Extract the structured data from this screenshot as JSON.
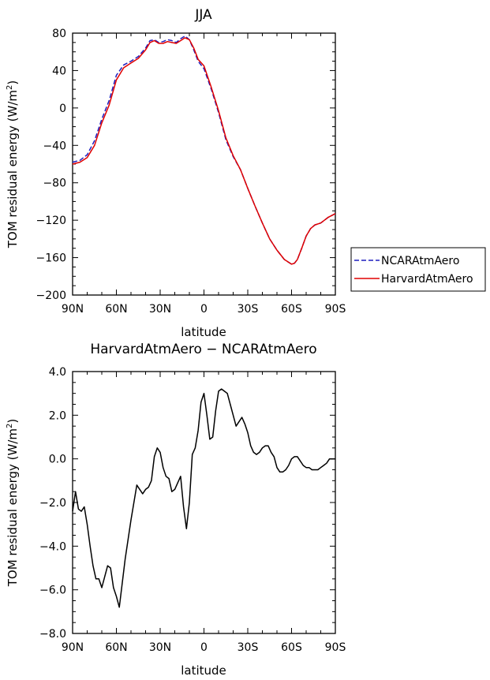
{
  "chart_data": [
    {
      "type": "line",
      "title": "JJA",
      "xlabel": "latitude",
      "ylabel": "TOM residual energy (W/m",
      "ylabel_sup": "2",
      "ylabel_close": ")",
      "xlim": [
        90,
        -90
      ],
      "ylim": [
        -200,
        80
      ],
      "xticks": [
        90,
        60,
        30,
        0,
        -30,
        -60,
        -90
      ],
      "xticklabels": [
        "90N",
        "60N",
        "30N",
        "0",
        "30S",
        "60S",
        "90S"
      ],
      "yticks": [
        80,
        40,
        0,
        -40,
        -80,
        -120,
        -160,
        -200
      ],
      "yticklabels": [
        "80",
        "40",
        "0",
        "−40",
        "−80",
        "−120",
        "−160",
        "−200"
      ],
      "legend_placement": "outside-right",
      "series": [
        {
          "name": "NCARAtmAero",
          "color": "#1f1fbf",
          "dash": "dashed",
          "x": [
            90,
            85,
            80,
            75,
            70,
            65,
            60,
            55,
            50,
            45,
            40,
            37,
            34,
            31,
            28,
            25,
            22,
            19,
            16,
            13,
            10,
            7,
            4,
            0,
            -5,
            -10,
            -15,
            -20,
            -25,
            -30,
            -35,
            -40,
            -45,
            -50,
            -55,
            -60,
            -62,
            -64,
            -67,
            -70,
            -73,
            -76,
            -80,
            -85,
            -90
          ],
          "y": [
            -58,
            -56,
            -50,
            -35,
            -12,
            8,
            35,
            46,
            50,
            55,
            64,
            72,
            73,
            70,
            71,
            73,
            72,
            70,
            74,
            77,
            73,
            62,
            50,
            42,
            20,
            -5,
            -34,
            -52,
            -66,
            -86,
            -105,
            -123,
            -140,
            -152,
            -162,
            -167,
            -166,
            -162,
            -150,
            -137,
            -129,
            -125,
            -123,
            -117,
            -113
          ]
        },
        {
          "name": "HarvardAtmAero",
          "color": "#e00000",
          "dash": "solid",
          "x": [
            90,
            85,
            80,
            75,
            70,
            65,
            60,
            55,
            50,
            45,
            40,
            37,
            34,
            31,
            28,
            25,
            22,
            19,
            16,
            13,
            10,
            7,
            4,
            0,
            -5,
            -10,
            -15,
            -20,
            -25,
            -30,
            -35,
            -40,
            -45,
            -50,
            -55,
            -60,
            -62,
            -64,
            -67,
            -70,
            -73,
            -76,
            -80,
            -85,
            -90
          ],
          "y": [
            -60,
            -58,
            -53,
            -40,
            -16,
            3,
            30,
            43,
            48,
            53,
            62,
            70,
            72,
            69,
            69,
            71,
            70,
            69,
            72,
            75,
            73,
            64,
            52,
            45,
            22,
            -3,
            -32,
            -51,
            -66,
            -86,
            -105,
            -123,
            -140,
            -152,
            -162,
            -167,
            -166,
            -162,
            -150,
            -137,
            -129,
            -125,
            -123,
            -117,
            -113
          ]
        }
      ]
    },
    {
      "type": "line",
      "title": "HarvardAtmAero − NCARAtmAero",
      "xlabel": "latitude",
      "ylabel": "TOM residual energy (W/m",
      "ylabel_sup": "2",
      "ylabel_close": ")",
      "xlim": [
        90,
        -90
      ],
      "ylim": [
        -8,
        4
      ],
      "xticks": [
        90,
        60,
        30,
        0,
        -30,
        -60,
        -90
      ],
      "xticklabels": [
        "90N",
        "60N",
        "30N",
        "0",
        "30S",
        "60S",
        "90S"
      ],
      "yticks": [
        4,
        2,
        0,
        -2,
        -4,
        -6,
        -8
      ],
      "yticklabels": [
        "4.0",
        "2.0",
        "0.0",
        "−2.0",
        "−4.0",
        "−6.0",
        "−8.0"
      ],
      "series": [
        {
          "color": "#000000",
          "dash": "solid",
          "x": [
            90,
            88,
            86,
            84,
            82,
            80,
            78,
            76,
            74,
            72,
            70,
            68,
            66,
            64,
            62,
            60,
            58,
            56,
            54,
            52,
            50,
            48,
            46,
            44,
            42,
            40,
            38,
            36,
            34,
            32,
            30,
            28,
            26,
            24,
            22,
            20,
            18,
            16,
            14,
            12,
            10,
            8,
            6,
            4,
            2,
            0,
            -2,
            -4,
            -6,
            -8,
            -10,
            -12,
            -14,
            -16,
            -18,
            -20,
            -22,
            -24,
            -26,
            -28,
            -30,
            -32,
            -34,
            -36,
            -38,
            -40,
            -42,
            -44,
            -46,
            -48,
            -50,
            -52,
            -54,
            -56,
            -58,
            -60,
            -62,
            -64,
            -66,
            -68,
            -70,
            -72,
            -74,
            -76,
            -78,
            -80,
            -82,
            -84,
            -86,
            -88,
            -90
          ],
          "y": [
            -2.4,
            -1.5,
            -2.3,
            -2.4,
            -2.2,
            -3.0,
            -4.0,
            -4.9,
            -5.5,
            -5.5,
            -5.9,
            -5.4,
            -4.9,
            -5.0,
            -5.9,
            -6.3,
            -6.8,
            -5.7,
            -4.6,
            -3.7,
            -2.8,
            -2.0,
            -1.2,
            -1.4,
            -1.6,
            -1.4,
            -1.3,
            -1.0,
            0.1,
            0.5,
            0.3,
            -0.4,
            -0.8,
            -0.9,
            -1.5,
            -1.4,
            -1.1,
            -0.8,
            -2.2,
            -3.2,
            -2.0,
            0.2,
            0.5,
            1.3,
            2.6,
            3.0,
            2.0,
            0.9,
            1.0,
            2.2,
            3.1,
            3.2,
            3.1,
            3.0,
            2.5,
            2.0,
            1.5,
            1.7,
            1.9,
            1.6,
            1.2,
            0.6,
            0.3,
            0.2,
            0.3,
            0.5,
            0.6,
            0.6,
            0.3,
            0.1,
            -0.4,
            -0.6,
            -0.6,
            -0.5,
            -0.3,
            0.0,
            0.1,
            0.1,
            -0.1,
            -0.3,
            -0.4,
            -0.4,
            -0.5,
            -0.5,
            -0.5,
            -0.4,
            -0.3,
            -0.2,
            0.0,
            0.0,
            0.0
          ]
        }
      ]
    }
  ]
}
